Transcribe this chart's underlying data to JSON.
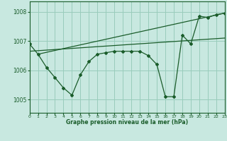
{
  "title": "Graphe pression niveau de la mer (hPa)",
  "bg_color": "#c8e8e0",
  "grid_color": "#99ccbb",
  "line_color": "#1a5c2a",
  "xlim": [
    0,
    23
  ],
  "ylim": [
    1004.55,
    1008.35
  ],
  "yticks": [
    1005,
    1006,
    1007,
    1008
  ],
  "xticks": [
    0,
    1,
    2,
    3,
    4,
    5,
    6,
    7,
    8,
    9,
    10,
    11,
    12,
    13,
    14,
    15,
    16,
    17,
    18,
    19,
    20,
    21,
    22,
    23
  ],
  "main_x": [
    0,
    1,
    2,
    3,
    4,
    5,
    6,
    7,
    8,
    9,
    10,
    11,
    12,
    13,
    14,
    15,
    16,
    17,
    18,
    19,
    20,
    21,
    22,
    23
  ],
  "main_y": [
    1006.9,
    1006.55,
    1006.1,
    1005.75,
    1005.4,
    1005.15,
    1005.85,
    1006.3,
    1006.55,
    1006.6,
    1006.65,
    1006.65,
    1006.65,
    1006.65,
    1006.5,
    1006.2,
    1005.1,
    1005.1,
    1007.2,
    1006.9,
    1007.85,
    1007.8,
    1007.9,
    1007.95
  ],
  "trend1_x": [
    0,
    23
  ],
  "trend1_y": [
    1006.65,
    1007.1
  ],
  "trend2_x": [
    1,
    23
  ],
  "trend2_y": [
    1006.55,
    1007.95
  ]
}
